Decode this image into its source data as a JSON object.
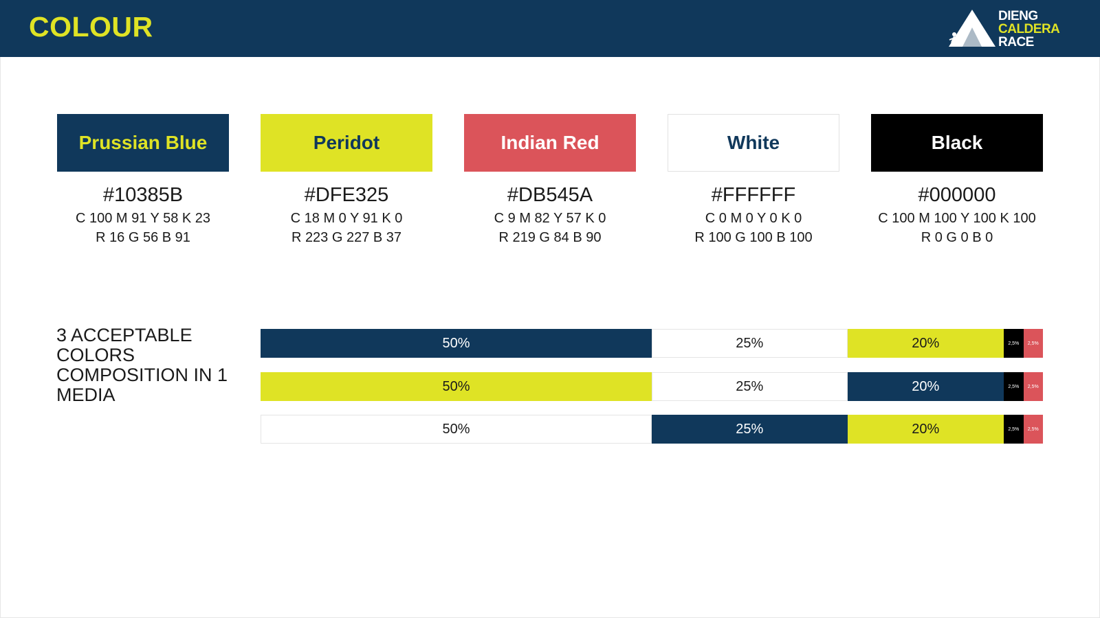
{
  "header": {
    "title": "COLOUR",
    "logo": {
      "line1": "DIENG",
      "line2": "CALDERA",
      "line3": "RACE"
    }
  },
  "colors": {
    "prussian": "#10385B",
    "peridot": "#DFE325",
    "red": "#DB545A",
    "white": "#FFFFFF",
    "black": "#000000"
  },
  "swatches": [
    {
      "name": "Prussian Blue",
      "hex": "#10385B",
      "cmyk": "C 100 M 91 Y 58 K 23",
      "rgb": "R 16 G 56 B 91"
    },
    {
      "name": "Peridot",
      "hex": "#DFE325",
      "cmyk": "C 18 M 0 Y 91 K 0",
      "rgb": "R 223 G 227 B 37"
    },
    {
      "name": "Indian Red",
      "hex": "#DB545A",
      "cmyk": "C 9 M 82 Y 57 K 0",
      "rgb": "R 219 G 84 B 90"
    },
    {
      "name": "White",
      "hex": "#FFFFFF",
      "cmyk": "C 0 M 0 Y 0 K 0",
      "rgb": "R 100 G 100 B 100"
    },
    {
      "name": "Black",
      "hex": "#000000",
      "cmyk": "C 100 M 100 Y 100 K 100",
      "rgb": "R 0 G 0 B 0"
    }
  ],
  "composition": {
    "label": "3 ACCEPTABLE COLORS COMPOSITION IN 1 MEDIA",
    "rows": [
      [
        {
          "label": "50%",
          "share": 50,
          "color": "#10385B"
        },
        {
          "label": "25%",
          "share": 25,
          "color": "#FFFFFF"
        },
        {
          "label": "20%",
          "share": 20,
          "color": "#DFE325"
        },
        {
          "label": "2,5%",
          "share": 2.5,
          "color": "#000000"
        },
        {
          "label": "2,5%",
          "share": 2.5,
          "color": "#DB545A"
        }
      ],
      [
        {
          "label": "50%",
          "share": 50,
          "color": "#DFE325"
        },
        {
          "label": "25%",
          "share": 25,
          "color": "#FFFFFF"
        },
        {
          "label": "20%",
          "share": 20,
          "color": "#10385B"
        },
        {
          "label": "2,5%",
          "share": 2.5,
          "color": "#000000"
        },
        {
          "label": "2,5%",
          "share": 2.5,
          "color": "#DB545A"
        }
      ],
      [
        {
          "label": "50%",
          "share": 50,
          "color": "#FFFFFF"
        },
        {
          "label": "25%",
          "share": 25,
          "color": "#10385B"
        },
        {
          "label": "20%",
          "share": 20,
          "color": "#DFE325"
        },
        {
          "label": "2,5%",
          "share": 2.5,
          "color": "#000000"
        },
        {
          "label": "2,5%",
          "share": 2.5,
          "color": "#DB545A"
        }
      ]
    ]
  }
}
